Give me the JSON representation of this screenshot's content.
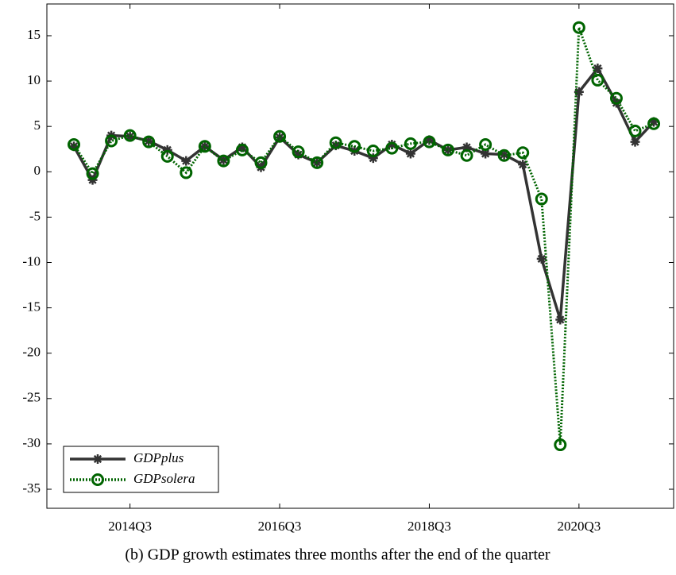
{
  "chart_data": {
    "type": "line",
    "caption": "(b) GDP growth estimates three months after the end of the quarter",
    "categories": [
      null,
      null,
      null,
      "2014Q3",
      null,
      null,
      null,
      null,
      null,
      null,
      null,
      "2016Q3",
      null,
      null,
      null,
      null,
      null,
      null,
      null,
      "2018Q3",
      null,
      null,
      null,
      null,
      null,
      null,
      null,
      "2020Q3",
      null,
      null,
      null,
      null
    ],
    "series": [
      {
        "name": "GDPplus",
        "color": "#333333",
        "marker": "asterisk",
        "dash": "solid",
        "values": [
          2.8,
          -0.9,
          4.0,
          3.9,
          3.4,
          2.4,
          1.2,
          2.8,
          1.3,
          2.7,
          0.5,
          3.8,
          1.9,
          1.0,
          2.9,
          2.3,
          1.5,
          3.0,
          2.0,
          3.5,
          2.4,
          2.7,
          2.0,
          1.9,
          0.8,
          -9.6,
          -16.3,
          8.8,
          11.4,
          7.6,
          3.3,
          5.5
        ]
      },
      {
        "name": "GDPsolera",
        "color": "#006400",
        "marker": "circle",
        "dash": "dotted",
        "values": [
          3.0,
          -0.2,
          3.4,
          4.0,
          3.3,
          1.7,
          -0.1,
          2.8,
          1.2,
          2.4,
          1.0,
          3.9,
          2.2,
          1.0,
          3.2,
          2.8,
          2.3,
          2.6,
          3.1,
          3.3,
          2.4,
          1.8,
          3.0,
          1.8,
          2.1,
          -3.0,
          -30.1,
          15.9,
          10.1,
          8.1,
          4.5,
          5.3
        ]
      }
    ],
    "ylim": [
      -37.1,
      18.5
    ],
    "yticks": [
      -35,
      -30,
      -25,
      -20,
      -15,
      -10,
      -5,
      0,
      5,
      10,
      15
    ],
    "legend": "lower left"
  }
}
